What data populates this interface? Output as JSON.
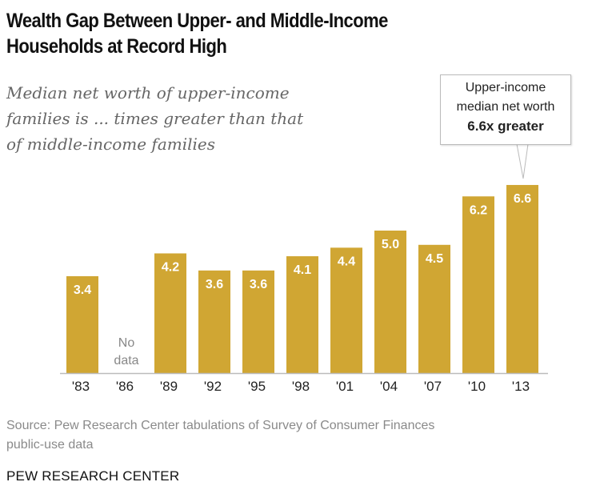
{
  "header": {
    "title_line1": "Wealth Gap Between Upper- and Middle-Income",
    "title_line2": "Households at Record High",
    "subtitle_line1": "Median net worth of upper-income",
    "subtitle_line2": "families is ... times greater than that",
    "subtitle_line3": "of middle-income families"
  },
  "callout": {
    "line1": "Upper-income",
    "line2": "median net worth",
    "line3": "6.6x greater",
    "border_color": "#bbbbbb"
  },
  "footer": {
    "source_line1": "Source: Pew Research Center tabulations of Survey of Consumer Finances",
    "source_line2": "public-use data",
    "brand": "PEW RESEARCH CENTER"
  },
  "chart_data": {
    "type": "bar",
    "title": "Wealth Gap Between Upper- and Middle-Income Households at Record High",
    "subtitle": "Median net worth of upper-income families is ... times greater than that of middle-income families",
    "xlabel": "",
    "ylabel": "",
    "categories": [
      "'83",
      "'86",
      "'89",
      "'92",
      "'95",
      "'98",
      "'01",
      "'04",
      "'07",
      "'10",
      "'13"
    ],
    "values": [
      3.4,
      null,
      4.2,
      3.6,
      3.6,
      4.1,
      4.4,
      5.0,
      4.5,
      6.2,
      6.6
    ],
    "value_labels": [
      "3.4",
      "",
      "4.2",
      "3.6",
      "3.6",
      "4.1",
      "4.4",
      "5.0",
      "4.5",
      "6.2",
      "6.6"
    ],
    "missing_label_line1": "No",
    "missing_label_line2": "data",
    "ylim": [
      0,
      6.6
    ],
    "grid": false,
    "legend": "none",
    "bar_color": "#d0a633",
    "axis_color": "#bbbbbb",
    "annotation": "Upper-income median net worth 6.6x greater"
  }
}
